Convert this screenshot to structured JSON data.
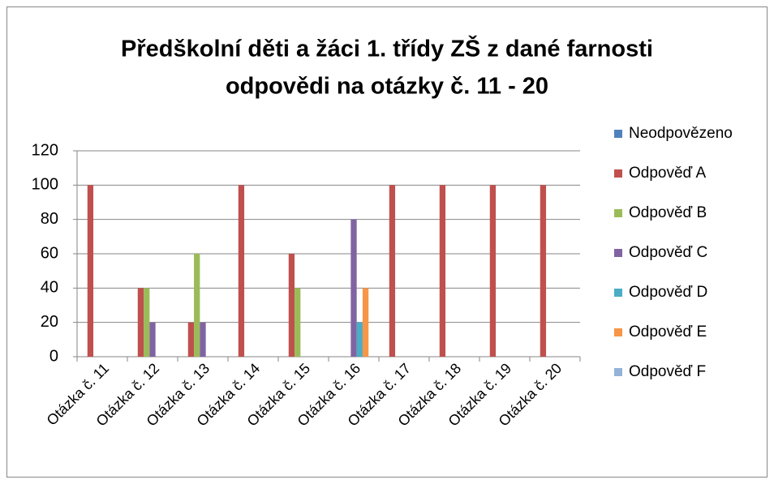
{
  "chart_data": {
    "type": "bar",
    "title": "Předškolní děti  a žáci 1. třídy ZŠ z dané farnosti",
    "subtitle": "odpovědi na otázky č. 11 - 20",
    "categories": [
      "Otázka č. 11",
      "Otázka č. 12",
      "Otázka č. 13",
      "Otázka č. 14",
      "Otázka č. 15",
      "Otázka č. 16",
      "Otázka č. 17",
      "Otázka č. 18",
      "Otázka č. 19",
      "Otázka č. 20"
    ],
    "series": [
      {
        "name": "Neodpovězeno",
        "color": "#4F81BD",
        "values": [
          0,
          0,
          0,
          0,
          0,
          0,
          0,
          0,
          0,
          0
        ]
      },
      {
        "name": "Odpověď A",
        "color": "#C0504D",
        "values": [
          100,
          40,
          20,
          100,
          60,
          0,
          100,
          100,
          100,
          100
        ]
      },
      {
        "name": "Odpověď B",
        "color": "#9BBB59",
        "values": [
          0,
          40,
          60,
          0,
          40,
          0,
          0,
          0,
          0,
          0
        ]
      },
      {
        "name": "Odpověď C",
        "color": "#8064A2",
        "values": [
          0,
          20,
          20,
          0,
          0,
          80,
          0,
          0,
          0,
          0
        ]
      },
      {
        "name": "Odpověď D",
        "color": "#4BACC6",
        "values": [
          0,
          0,
          0,
          0,
          0,
          20,
          0,
          0,
          0,
          0
        ]
      },
      {
        "name": "Odpověď E",
        "color": "#F79646",
        "values": [
          0,
          0,
          0,
          0,
          0,
          40,
          0,
          0,
          0,
          0
        ]
      },
      {
        "name": "Odpověď F",
        "color": "#95B3D7",
        "values": [
          0,
          0,
          0,
          0,
          0,
          0,
          0,
          0,
          0,
          0
        ]
      }
    ],
    "ylim": [
      0,
      120
    ],
    "yticks": [
      0,
      20,
      40,
      60,
      80,
      100,
      120
    ],
    "grid": true,
    "legend": "right"
  }
}
